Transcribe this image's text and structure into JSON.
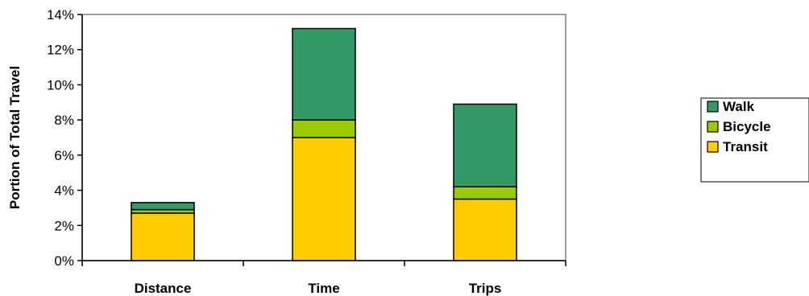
{
  "chart_data": {
    "type": "bar",
    "stacked": true,
    "categories": [
      "Distance",
      "Time",
      "Trips"
    ],
    "series": [
      {
        "name": "Transit",
        "values": [
          2.7,
          7.0,
          3.5
        ],
        "color": "#FFCC00"
      },
      {
        "name": "Bicycle",
        "values": [
          0.2,
          1.0,
          0.7
        ],
        "color": "#99CC00"
      },
      {
        "name": "Walk",
        "values": [
          0.4,
          5.2,
          4.7
        ],
        "color": "#339966"
      }
    ],
    "title": "",
    "xlabel": "",
    "ylabel": "Portion of Total Travel",
    "ylim": [
      0,
      14
    ],
    "yticks": [
      "0%",
      "2%",
      "4%",
      "6%",
      "8%",
      "10%",
      "12%",
      "14%"
    ],
    "grid": false,
    "legend": {
      "position": "right",
      "order": [
        "Walk",
        "Bicycle",
        "Transit"
      ]
    }
  }
}
